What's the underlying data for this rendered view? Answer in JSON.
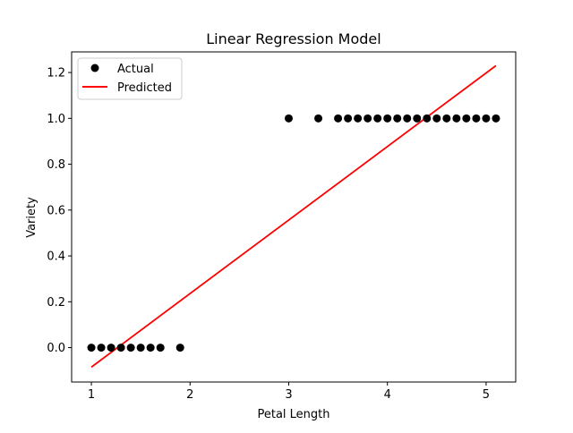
{
  "chart_data": {
    "type": "scatter",
    "title": "Linear Regression Model",
    "xlabel": "Petal Length",
    "ylabel": "Variety",
    "xlim": [
      0.8,
      5.3
    ],
    "ylim": [
      -0.15,
      1.29
    ],
    "xticks": [
      1,
      2,
      3,
      4,
      5
    ],
    "yticks": [
      0.0,
      0.2,
      0.4,
      0.6,
      0.8,
      1.0,
      1.2
    ],
    "xtick_labels": [
      "1",
      "2",
      "3",
      "4",
      "5"
    ],
    "ytick_labels": [
      "0.0",
      "0.2",
      "0.4",
      "0.6",
      "0.8",
      "1.0",
      "1.2"
    ],
    "grid": false,
    "legend_position": "top-left",
    "series": [
      {
        "name": "Actual",
        "kind": "scatter",
        "color": "#000000",
        "x": [
          1.0,
          1.1,
          1.2,
          1.3,
          1.4,
          1.5,
          1.6,
          1.7,
          1.9,
          3.0,
          3.3,
          3.5,
          3.6,
          3.7,
          3.8,
          3.9,
          4.0,
          4.1,
          4.2,
          4.3,
          4.4,
          4.5,
          4.6,
          4.7,
          4.8,
          4.9,
          5.0,
          5.1
        ],
        "y": [
          0,
          0,
          0,
          0,
          0,
          0,
          0,
          0,
          0,
          1,
          1,
          1,
          1,
          1,
          1,
          1,
          1,
          1,
          1,
          1,
          1,
          1,
          1,
          1,
          1,
          1,
          1,
          1
        ]
      },
      {
        "name": "Predicted",
        "kind": "line",
        "color": "#ff0000",
        "x": [
          1.0,
          5.1
        ],
        "y": [
          -0.085,
          1.23
        ]
      }
    ]
  }
}
